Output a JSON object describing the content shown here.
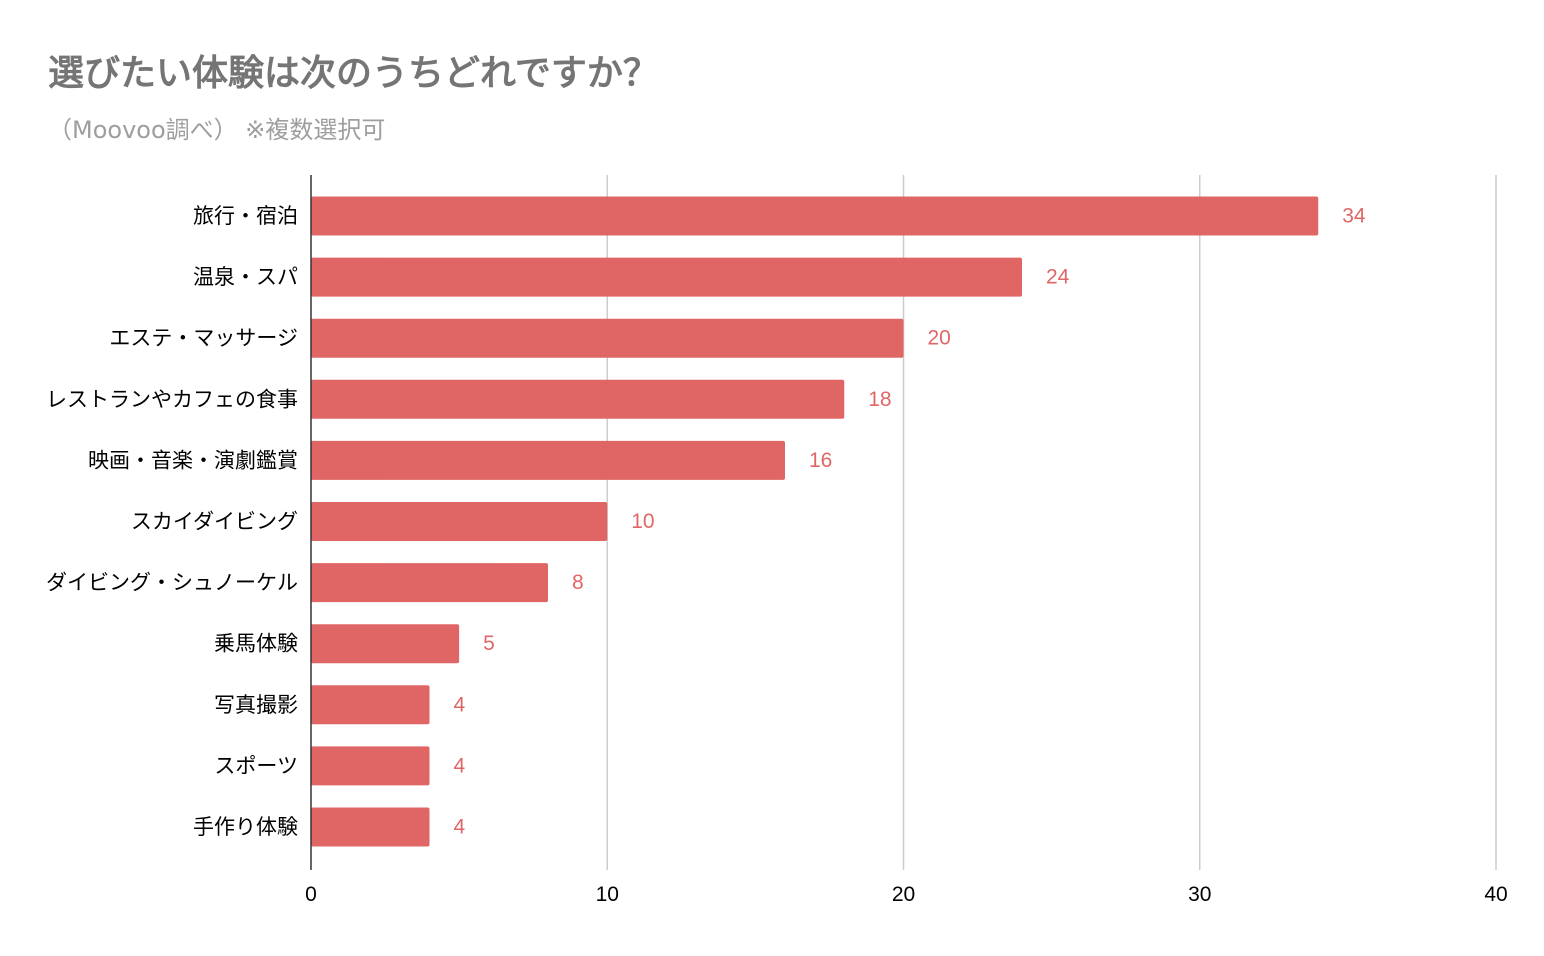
{
  "chart_data": {
    "type": "bar",
    "orientation": "horizontal",
    "title": "選びたい体験は次のうちどれですか？",
    "subtitle": "（Moovoo調べ） ※複数選択可",
    "categories": [
      "旅行・宿泊",
      "温泉・スパ",
      "エステ・マッサージ",
      "レストランやカフェの食事",
      "映画・音楽・演劇鑑賞",
      "スカイダイビング",
      "ダイビング・シュノーケル",
      "乗馬体験",
      "写真撮影",
      "スポーツ",
      "手作り体験"
    ],
    "values": [
      34,
      24,
      20,
      18,
      16,
      10,
      8,
      5,
      4,
      4,
      4
    ],
    "xlim": [
      0,
      40
    ],
    "xticks": [
      0,
      10,
      20,
      30,
      40
    ],
    "grid": true,
    "bar_color": "#e06666",
    "label_color": "#e06666",
    "grid_color": "#cccccc"
  }
}
